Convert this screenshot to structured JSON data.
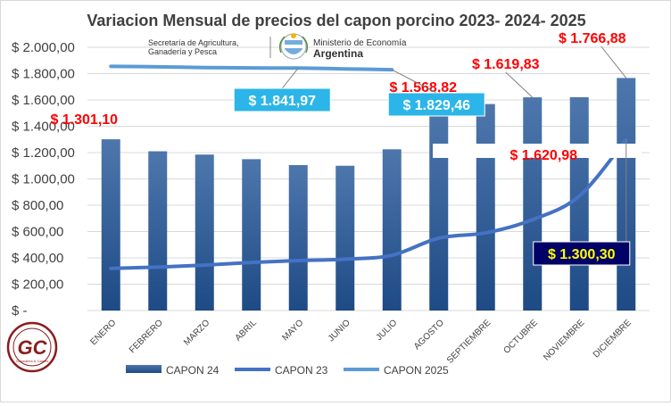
{
  "chart_data": {
    "type": "bar",
    "title": "Variacion Mensual de precios del capon porcino 2023- 2024- 2025",
    "categories": [
      "ENERO",
      "FEBRERO",
      "MARZO",
      "ABRIL",
      "MAYO",
      "JUNIO",
      "JULIO",
      "AGOSTO",
      "SEPTIEMBRE",
      "OCTUBRE",
      "NOVIEMBRE",
      "DICIEMBRE"
    ],
    "y_ticks": [
      "$ -",
      "$ 200,00",
      "$ 400,00",
      "$ 600,00",
      "$ 800,00",
      "$ 1.000,00",
      "$ 1.200,00",
      "$ 1.400,00",
      "$ 1.600,00",
      "$ 1.800,00",
      "$ 2.000,00"
    ],
    "ylim": [
      0,
      2000
    ],
    "grid": true,
    "legend_position": "bottom",
    "series": [
      {
        "name": "CAPON 24",
        "kind": "bar",
        "color": "#2f5a93",
        "values": [
          1301.1,
          1210,
          1185,
          1150,
          1105,
          1100,
          1225,
          1510,
          1568.82,
          1619.83,
          1620.98,
          1766.88
        ]
      },
      {
        "name": "CAPON 23",
        "kind": "line",
        "color": "#4472c4",
        "values": [
          320,
          330,
          345,
          365,
          380,
          390,
          420,
          550,
          590,
          690,
          870,
          1300.3
        ]
      },
      {
        "name": "CAPON 2025",
        "kind": "line",
        "color": "#5b9bd5",
        "values": [
          1855,
          1852,
          1846,
          1843,
          1841.97,
          1836,
          1829.46,
          null,
          null,
          null,
          null,
          null
        ]
      }
    ],
    "annotations": [
      {
        "text": "$ 1.301,10",
        "style": "red",
        "anchor": "bar",
        "series": 0,
        "index": 0
      },
      {
        "text": "$ 1.568,82",
        "style": "red",
        "anchor": "bar",
        "series": 0,
        "index": 8
      },
      {
        "text": "$ 1.619,83",
        "style": "red",
        "anchor": "bar",
        "series": 0,
        "index": 9
      },
      {
        "text": "$ 1.620,98",
        "style": "red-boxed",
        "anchor": "bar",
        "series": 0,
        "index": 10
      },
      {
        "text": "$ 1.766,88",
        "style": "red",
        "anchor": "bar",
        "series": 0,
        "index": 11
      },
      {
        "text": "$ 1.841,97",
        "style": "cyan-box",
        "anchor": "line",
        "series": 2,
        "index": 4
      },
      {
        "text": "$ 1.829,46",
        "style": "cyan-box",
        "anchor": "line",
        "series": 2,
        "index": 6
      },
      {
        "text": "$ 1.300,30",
        "style": "navy-box",
        "anchor": "line",
        "series": 1,
        "index": 11
      }
    ]
  },
  "logos": {
    "secretaria": "Secretaría de Agricultura,\nGanadería y Pesca",
    "ministerio": "Ministerio de Economía",
    "argentina": "Argentina",
    "watermark": "GC",
    "watermark_sub": "Ganadería & Carnes"
  }
}
